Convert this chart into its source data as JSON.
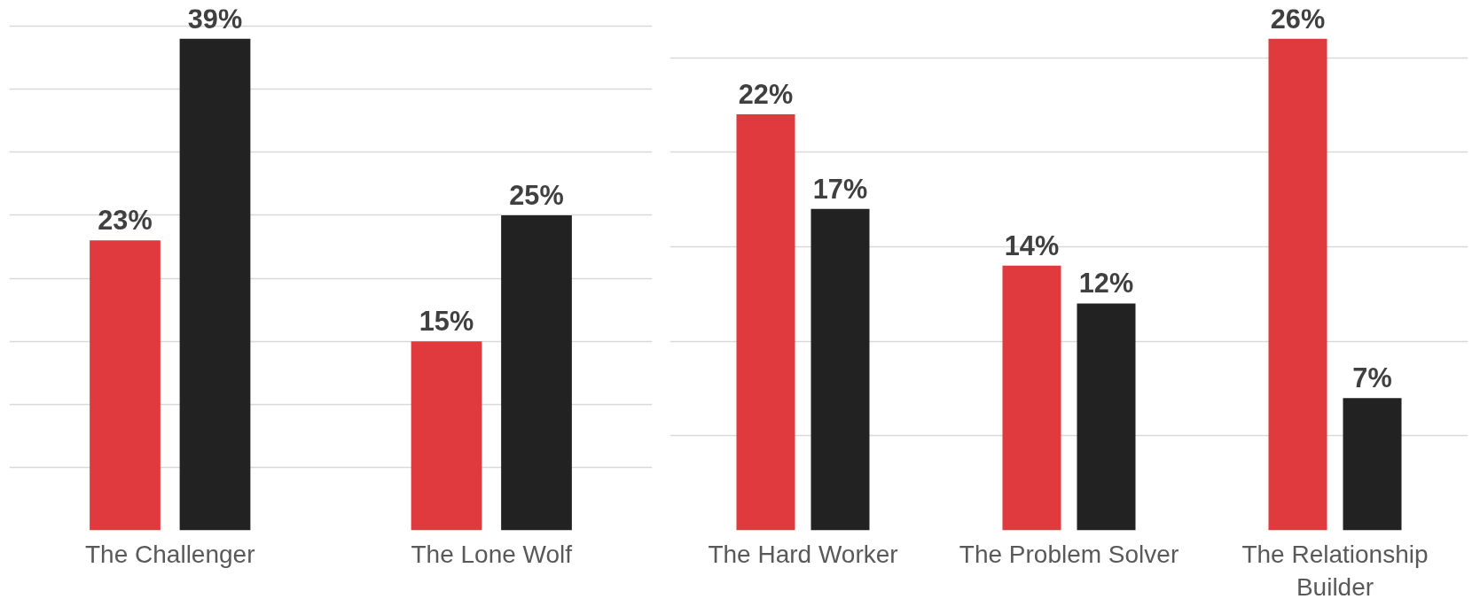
{
  "chart_data": [
    {
      "type": "bar",
      "categories": [
        "The Challenger",
        "The Lone Wolf"
      ],
      "series": [
        {
          "color": "#e0393e",
          "values": [
            23,
            15
          ],
          "value_labels": [
            "23%",
            "15%"
          ]
        },
        {
          "color": "#222222",
          "values": [
            39,
            25
          ],
          "value_labels": [
            "39%",
            "25%"
          ]
        }
      ],
      "grid": "y",
      "tick_labels": "x"
    },
    {
      "type": "bar",
      "categories": [
        "The Hard Worker",
        "The Problem Solver",
        "The Relationship Builder"
      ],
      "series": [
        {
          "color": "#e0393e",
          "values": [
            22,
            14,
            26
          ],
          "value_labels": [
            "22%",
            "14%",
            "26%"
          ]
        },
        {
          "color": "#222222",
          "values": [
            17,
            12,
            7
          ],
          "value_labels": [
            "17%",
            "12%",
            "7%"
          ]
        }
      ],
      "grid": "y",
      "tick_labels": "x"
    }
  ]
}
